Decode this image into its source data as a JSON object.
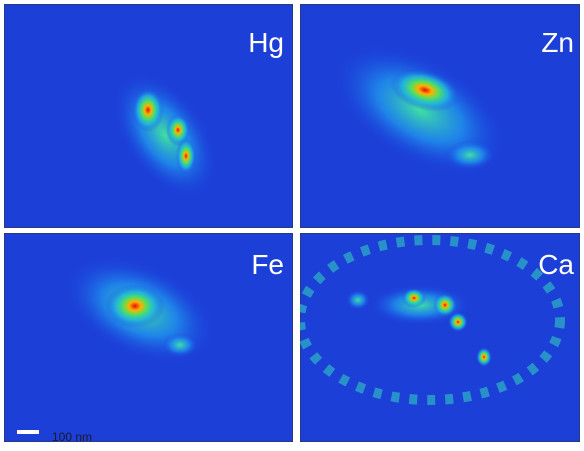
{
  "panels": [
    {
      "label": "Hg"
    },
    {
      "label": "Zn"
    },
    {
      "label": "Fe"
    },
    {
      "label": "Ca"
    }
  ],
  "scale_bar": {
    "label": "100 nm"
  }
}
